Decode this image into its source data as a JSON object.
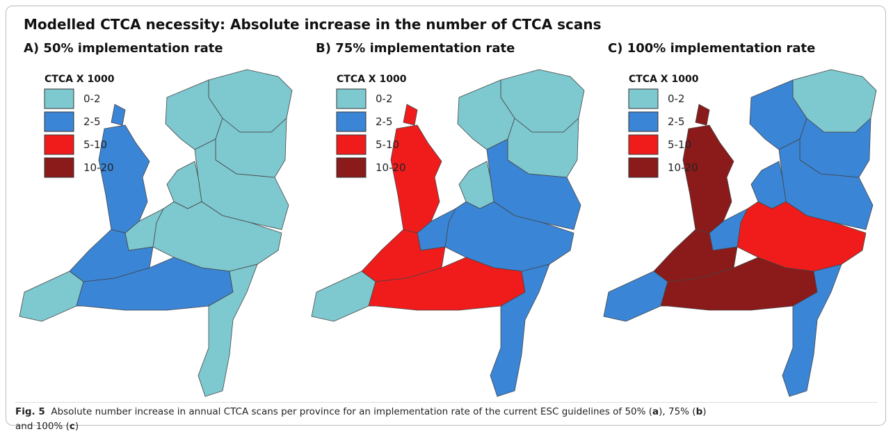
{
  "title": "Modelled CTCA necessity: Absolute increase in the number of CTCA scans",
  "legend": {
    "title": "CTCA X 1000",
    "items": [
      {
        "label": "0-2",
        "color": "#7ec8cf"
      },
      {
        "label": "2-5",
        "color": "#3a85d6"
      },
      {
        "label": "5-10",
        "color": "#f01c1c"
      },
      {
        "label": "10-20",
        "color": "#8b1a1a"
      }
    ]
  },
  "panels": [
    {
      "title": "A) 50% implementation rate",
      "classes": [
        0,
        0,
        0,
        0,
        0,
        0,
        0,
        1,
        1,
        0,
        1,
        0
      ]
    },
    {
      "title": "B) 75% implementation rate",
      "classes": [
        0,
        0,
        0,
        1,
        0,
        1,
        1,
        2,
        2,
        0,
        2,
        1
      ]
    },
    {
      "title": "C) 100% implementation rate",
      "classes": [
        0,
        1,
        1,
        1,
        1,
        2,
        1,
        3,
        3,
        1,
        3,
        1
      ]
    }
  ],
  "caption": [
    {
      "text": "Fig. 5",
      "bold": true
    },
    {
      "text": "  Absolute number increase in annual CTCA scans per province for an implementation rate of the current ESC guidelines of 50% (",
      "bold": false
    },
    {
      "text": "a",
      "bold": true
    },
    {
      "text": "), 75% (",
      "bold": false
    },
    {
      "text": "b",
      "bold": true
    },
    {
      "text": ")",
      "bold": false
    },
    {
      "text": "and 100% (",
      "bold": false,
      "newline": true
    },
    {
      "text": "c",
      "bold": true
    },
    {
      "text": ")",
      "bold": false
    }
  ]
}
